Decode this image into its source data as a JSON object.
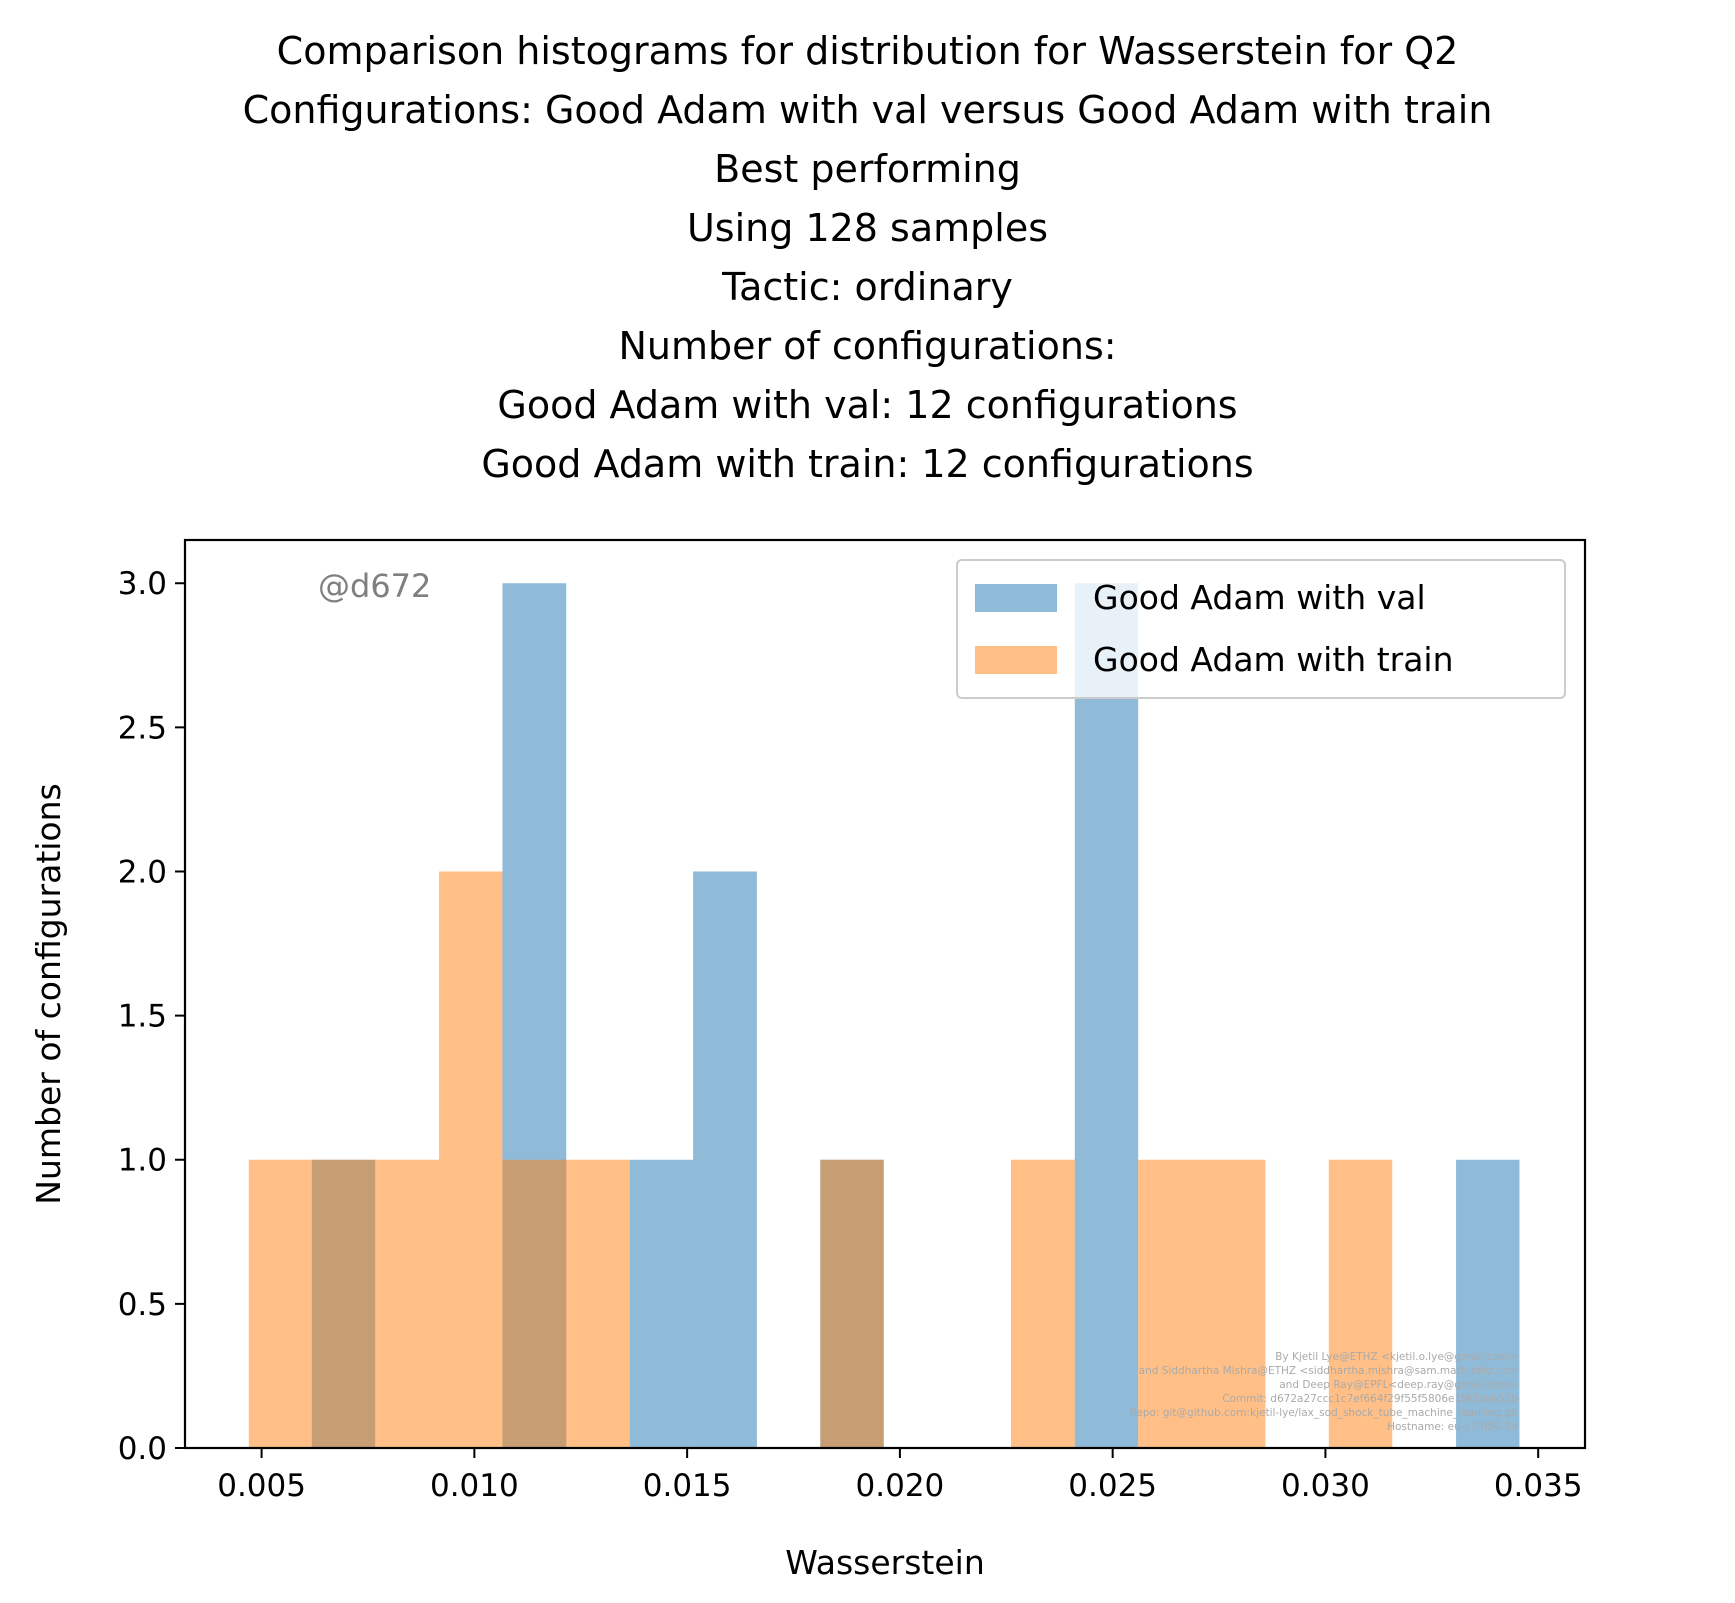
{
  "chart_data": {
    "type": "bar",
    "title_lines": [
      "Comparison histograms for distribution for Wasserstein for Q2",
      "Configurations: Good Adam with val versus Good Adam with train",
      "Best performing",
      "Using 128 samples",
      "Tactic: ordinary",
      "Number of configurations:",
      "Good Adam with val: 12 configurations",
      "Good Adam with train: 12 configurations"
    ],
    "xlabel": "Wasserstein",
    "ylabel": "Number of configurations",
    "xlim": [
      0.0032,
      0.0361
    ],
    "ylim": [
      0,
      3.15
    ],
    "xticks": [
      0.005,
      0.01,
      0.015,
      0.02,
      0.025,
      0.03,
      0.035
    ],
    "xtick_labels": [
      "0.005",
      "0.010",
      "0.015",
      "0.020",
      "0.025",
      "0.030",
      "0.035"
    ],
    "yticks": [
      0.0,
      0.5,
      1.0,
      1.5,
      2.0,
      2.5,
      3.0
    ],
    "ytick_labels": [
      "0.0",
      "0.5",
      "1.0",
      "1.5",
      "2.0",
      "2.5",
      "3.0"
    ],
    "legend_position": "top-right",
    "annotation": "@d672",
    "credits": [
      "By Kjetil Lye@ETHZ <kjetil.o.lye@gmail.com>",
      "and Siddhartha Mishra@ETHZ <siddhartha.mishra@sam.math.ethz.ch>",
      "and Deep Ray@EPFL<deep.ray@gmail.com>",
      "Commit: d672a27ccc1c7ef664f29f55f5806e1f93ab652b",
      "Repo: git@github.com:kjetil-lye/lax_sod_shock_tube_machine_learning.git",
      "Hostname: eu-c7-056-14"
    ],
    "series": [
      {
        "name": "Good Adam with val",
        "color": "#1f77b4",
        "alpha": 0.5,
        "bin_edges": [
          0.00618,
          0.00767,
          0.00917,
          0.01066,
          0.01216,
          0.01365,
          0.01514,
          0.01664,
          0.01813,
          0.01962,
          0.02112,
          0.02261,
          0.02411,
          0.0256,
          0.02709,
          0.02859,
          0.03008,
          0.03157,
          0.03307,
          0.03456
        ],
        "counts": [
          1,
          0,
          0,
          3,
          0,
          1,
          2,
          0,
          1,
          0,
          0,
          0,
          3,
          0,
          0,
          0,
          0,
          0,
          1
        ]
      },
      {
        "name": "Good Adam with train",
        "color": "#ff7f0e",
        "alpha": 0.5,
        "bin_edges": [
          0.0047,
          0.00618,
          0.00767,
          0.00917,
          0.01066,
          0.01216,
          0.01365,
          0.01514,
          0.01664,
          0.01813,
          0.01962,
          0.02112,
          0.02261,
          0.02411,
          0.0256,
          0.02709,
          0.02859,
          0.03008,
          0.03157
        ],
        "counts": [
          1,
          1,
          1,
          2,
          1,
          1,
          0,
          0,
          0,
          1,
          0,
          0,
          1,
          0,
          1,
          1,
          0,
          1
        ]
      }
    ]
  }
}
